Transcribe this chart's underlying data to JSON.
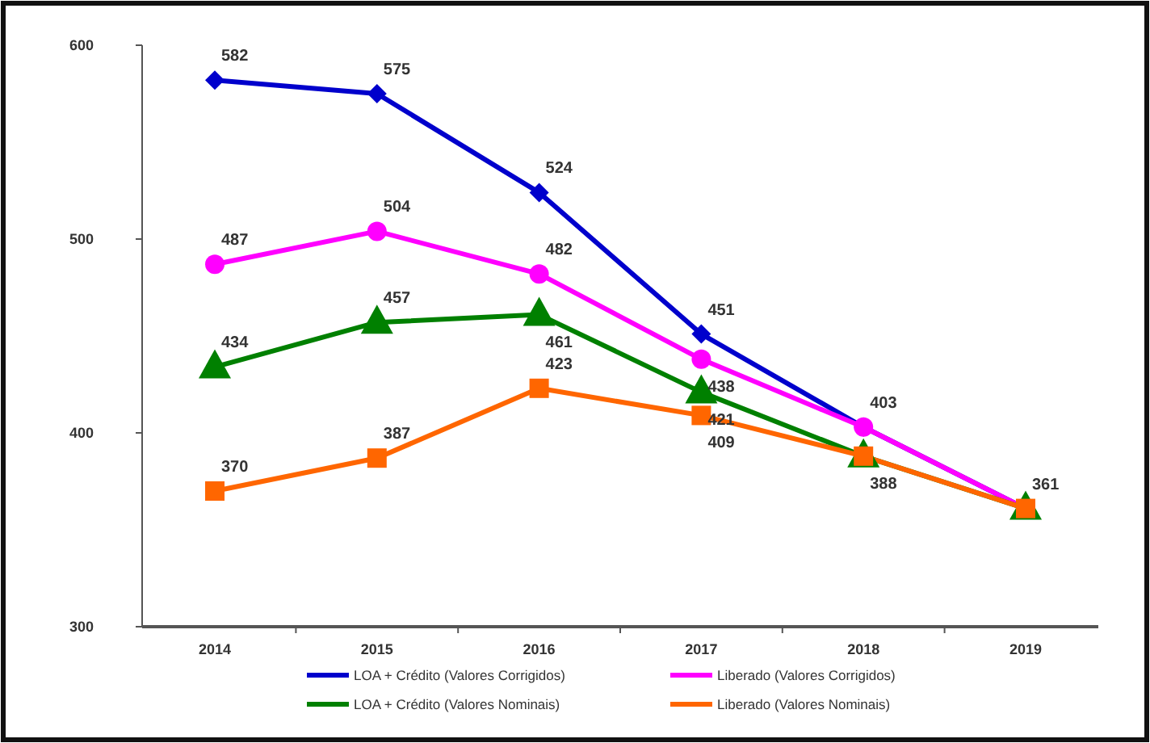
{
  "chart_data": {
    "type": "line",
    "categories": [
      "2014",
      "2015",
      "2016",
      "2017",
      "2018",
      "2019"
    ],
    "ylim": [
      300,
      600
    ],
    "yticks": [
      300,
      400,
      500,
      600
    ],
    "legend": "bottom",
    "series": [
      {
        "name": "LOA + Crédito (Valores Corrigidos)",
        "color": "#0000cc",
        "marker": "diamond",
        "values": [
          582,
          575,
          524,
          451,
          403,
          361
        ],
        "value_labels": [
          "582",
          "575",
          "524",
          "451",
          null,
          null
        ]
      },
      {
        "name": "Liberado (Valores Corrigidos)",
        "color": "#ff00ff",
        "marker": "circle",
        "values": [
          487,
          504,
          482,
          438,
          403,
          361
        ],
        "value_labels": [
          "487",
          "504",
          "482",
          "438",
          "403",
          null
        ]
      },
      {
        "name": "LOA + Crédito (Valores Nominais)",
        "color": "#008000",
        "marker": "triangle",
        "values": [
          434,
          457,
          461,
          421,
          388,
          361
        ],
        "value_labels": [
          "434",
          "457",
          "461",
          "421",
          null,
          null
        ]
      },
      {
        "name": "Liberado (Valores Nominais)",
        "color": "#ff6600",
        "marker": "square",
        "values": [
          370,
          387,
          423,
          409,
          388,
          361
        ],
        "value_labels": [
          "370",
          "387",
          "423",
          "409",
          "388",
          "361"
        ]
      }
    ]
  }
}
